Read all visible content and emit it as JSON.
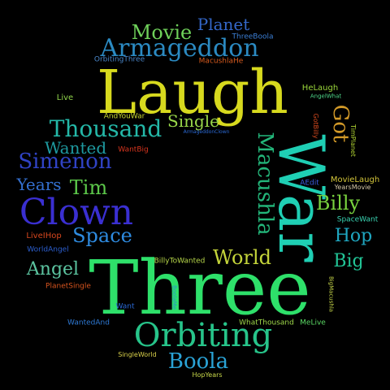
{
  "cloud": {
    "background": "#000000",
    "words": [
      {
        "text": "Three",
        "color": "#2ee06a",
        "vertical": false
      },
      {
        "text": "Laugh",
        "color": "#d7d91e",
        "vertical": false
      },
      {
        "text": "War",
        "color": "#1fcfb4",
        "vertical": true
      },
      {
        "text": "Clown",
        "color": "#3a2fd1",
        "vertical": false
      },
      {
        "text": "Orbiting",
        "color": "#27c48a",
        "vertical": false
      },
      {
        "text": "Thousand",
        "color": "#24b8a8",
        "vertical": false
      },
      {
        "text": "Armageddon",
        "color": "#2b8ac2",
        "vertical": false
      },
      {
        "text": "Simenon",
        "color": "#3043c6",
        "vertical": false
      },
      {
        "text": "Macushla",
        "color": "#23b67a",
        "vertical": true
      },
      {
        "text": "Boola",
        "color": "#2aa3d6",
        "vertical": false
      },
      {
        "text": "Movie",
        "color": "#6fd15a",
        "vertical": false
      },
      {
        "text": "Wanted",
        "color": "#1e9aa0",
        "vertical": false
      },
      {
        "text": "Tim",
        "color": "#5cc84a",
        "vertical": false
      },
      {
        "text": "Space",
        "color": "#2e8be0",
        "vertical": false
      },
      {
        "text": "World",
        "color": "#c4d43a",
        "vertical": false
      },
      {
        "text": "Angel",
        "color": "#5cc4a0",
        "vertical": false
      },
      {
        "text": "Single",
        "color": "#9ad84a",
        "vertical": false
      },
      {
        "text": "Billy",
        "color": "#79d23e",
        "vertical": false
      },
      {
        "text": "Hop",
        "color": "#1fa6c0",
        "vertical": false
      },
      {
        "text": "Big",
        "color": "#22c496",
        "vertical": false
      },
      {
        "text": "Got",
        "color": "#d39a28",
        "vertical": true
      },
      {
        "text": "Years",
        "color": "#3470d0",
        "vertical": false
      },
      {
        "text": "Planet",
        "color": "#3467c9",
        "vertical": false
      },
      {
        "text": "Live",
        "color": "#8fd24a",
        "vertical": false
      },
      {
        "text": "ThreeBoola",
        "color": "#3b7fd6",
        "vertical": false
      },
      {
        "text": "OrbitingThree",
        "color": "#4a86c8",
        "vertical": false
      },
      {
        "text": "MacushlaHe",
        "color": "#d55a1e",
        "vertical": false
      },
      {
        "text": "AndYouWar",
        "color": "#c9d832",
        "vertical": false
      },
      {
        "text": "WantBig",
        "color": "#d8351e",
        "vertical": false
      },
      {
        "text": "HeLaugh",
        "color": "#9ad63a",
        "vertical": false
      },
      {
        "text": "AngelWhat",
        "color": "#4fd88a",
        "vertical": false
      },
      {
        "text": "GotBilly",
        "color": "#d84a1e",
        "vertical": true
      },
      {
        "text": "TimPlanet",
        "color": "#b2d632",
        "vertical": true
      },
      {
        "text": "ArmageddonClown",
        "color": "#2b6ad6",
        "vertical": false
      },
      {
        "text": "AEdit",
        "color": "#3b5be0",
        "vertical": false
      },
      {
        "text": "MovieLaugh",
        "color": "#d2c43a",
        "vertical": false
      },
      {
        "text": "YearsMovie",
        "color": "#d6c8a8",
        "vertical": false
      },
      {
        "text": "SpaceWant",
        "color": "#3ad6b4",
        "vertical": false
      },
      {
        "text": "LiveIHop",
        "color": "#d8471e",
        "vertical": false
      },
      {
        "text": "WorldAngel",
        "color": "#2c5fd0",
        "vertical": false
      },
      {
        "text": "BillyToWanted",
        "color": "#b8d84a",
        "vertical": false
      },
      {
        "text": "PlanetSingle",
        "color": "#d8541e",
        "vertical": false
      },
      {
        "text": "Want",
        "color": "#2a6ad8",
        "vertical": false
      },
      {
        "text": "BoolaMe",
        "color": "#2a8ad0",
        "vertical": true
      },
      {
        "text": "BigMacushla",
        "color": "#c8d84a",
        "vertical": true
      },
      {
        "text": "WantedAnd",
        "color": "#2e7ad6",
        "vertical": false
      },
      {
        "text": "WhatThousand",
        "color": "#9fd84a",
        "vertical": false
      },
      {
        "text": "MeLive",
        "color": "#5ad864",
        "vertical": false
      },
      {
        "text": "SingleWorld",
        "color": "#d8d04a",
        "vertical": false
      },
      {
        "text": "HopYears",
        "color": "#c8d84a",
        "vertical": false
      }
    ]
  }
}
